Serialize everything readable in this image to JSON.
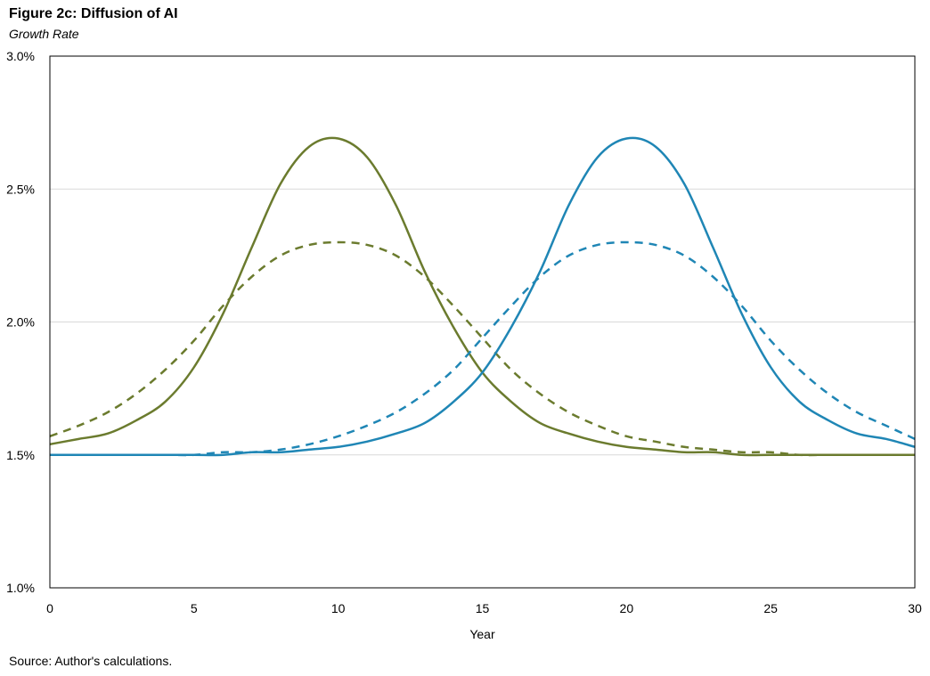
{
  "figure": {
    "title": "Figure 2c: Diffusion of AI",
    "subtitle": "Growth Rate",
    "source": "Source: Author's calculations."
  },
  "chart_data": {
    "type": "line",
    "xlabel": "Year",
    "ylabel": "",
    "xlim": [
      0,
      30
    ],
    "ylim": [
      1.0,
      3.0
    ],
    "x_ticks": [
      0,
      5,
      10,
      15,
      20,
      25,
      30
    ],
    "x_tick_labels": [
      "0",
      "5",
      "10",
      "15",
      "20",
      "25",
      "30"
    ],
    "y_ticks": [
      1.0,
      1.5,
      2.0,
      2.5,
      3.0
    ],
    "y_tick_labels": [
      "1.0%",
      "1.5%",
      "2.0%",
      "2.5%",
      "3.0%"
    ],
    "grid": "horizontal",
    "legend": "none",
    "x": [
      0,
      1,
      2,
      3,
      4,
      5,
      6,
      7,
      8,
      9,
      10,
      11,
      12,
      13,
      14,
      15,
      16,
      17,
      18,
      19,
      20,
      21,
      22,
      23,
      24,
      25,
      26,
      27,
      28,
      29,
      30
    ],
    "series": [
      {
        "color": "#6b7b2e",
        "dash": "solid",
        "values": [
          1.54,
          1.56,
          1.58,
          1.63,
          1.7,
          1.83,
          2.03,
          2.28,
          2.52,
          2.66,
          2.69,
          2.62,
          2.44,
          2.19,
          1.98,
          1.81,
          1.7,
          1.62,
          1.58,
          1.55,
          1.53,
          1.52,
          1.51,
          1.51,
          1.5,
          1.5,
          1.5,
          1.5,
          1.5,
          1.5,
          1.5
        ]
      },
      {
        "color": "#6b7b2e",
        "dash": "dashed",
        "values": [
          1.57,
          1.61,
          1.66,
          1.73,
          1.82,
          1.93,
          2.06,
          2.17,
          2.25,
          2.29,
          2.3,
          2.29,
          2.25,
          2.17,
          2.06,
          1.94,
          1.82,
          1.73,
          1.66,
          1.61,
          1.57,
          1.55,
          1.53,
          1.52,
          1.51,
          1.51,
          1.5,
          1.5,
          1.5,
          1.5,
          1.5
        ]
      },
      {
        "color": "#1f86b5",
        "dash": "solid",
        "values": [
          1.5,
          1.5,
          1.5,
          1.5,
          1.5,
          1.5,
          1.5,
          1.51,
          1.51,
          1.52,
          1.53,
          1.55,
          1.58,
          1.62,
          1.7,
          1.81,
          1.98,
          2.19,
          2.44,
          2.62,
          2.69,
          2.66,
          2.52,
          2.28,
          2.03,
          1.83,
          1.7,
          1.63,
          1.58,
          1.56,
          1.53
        ]
      },
      {
        "color": "#1f86b5",
        "dash": "dashed",
        "values": [
          1.5,
          1.5,
          1.5,
          1.5,
          1.5,
          1.5,
          1.51,
          1.51,
          1.52,
          1.54,
          1.57,
          1.61,
          1.66,
          1.73,
          1.82,
          1.94,
          2.06,
          2.17,
          2.25,
          2.29,
          2.3,
          2.29,
          2.25,
          2.17,
          2.06,
          1.93,
          1.82,
          1.73,
          1.66,
          1.61,
          1.56
        ]
      }
    ]
  }
}
